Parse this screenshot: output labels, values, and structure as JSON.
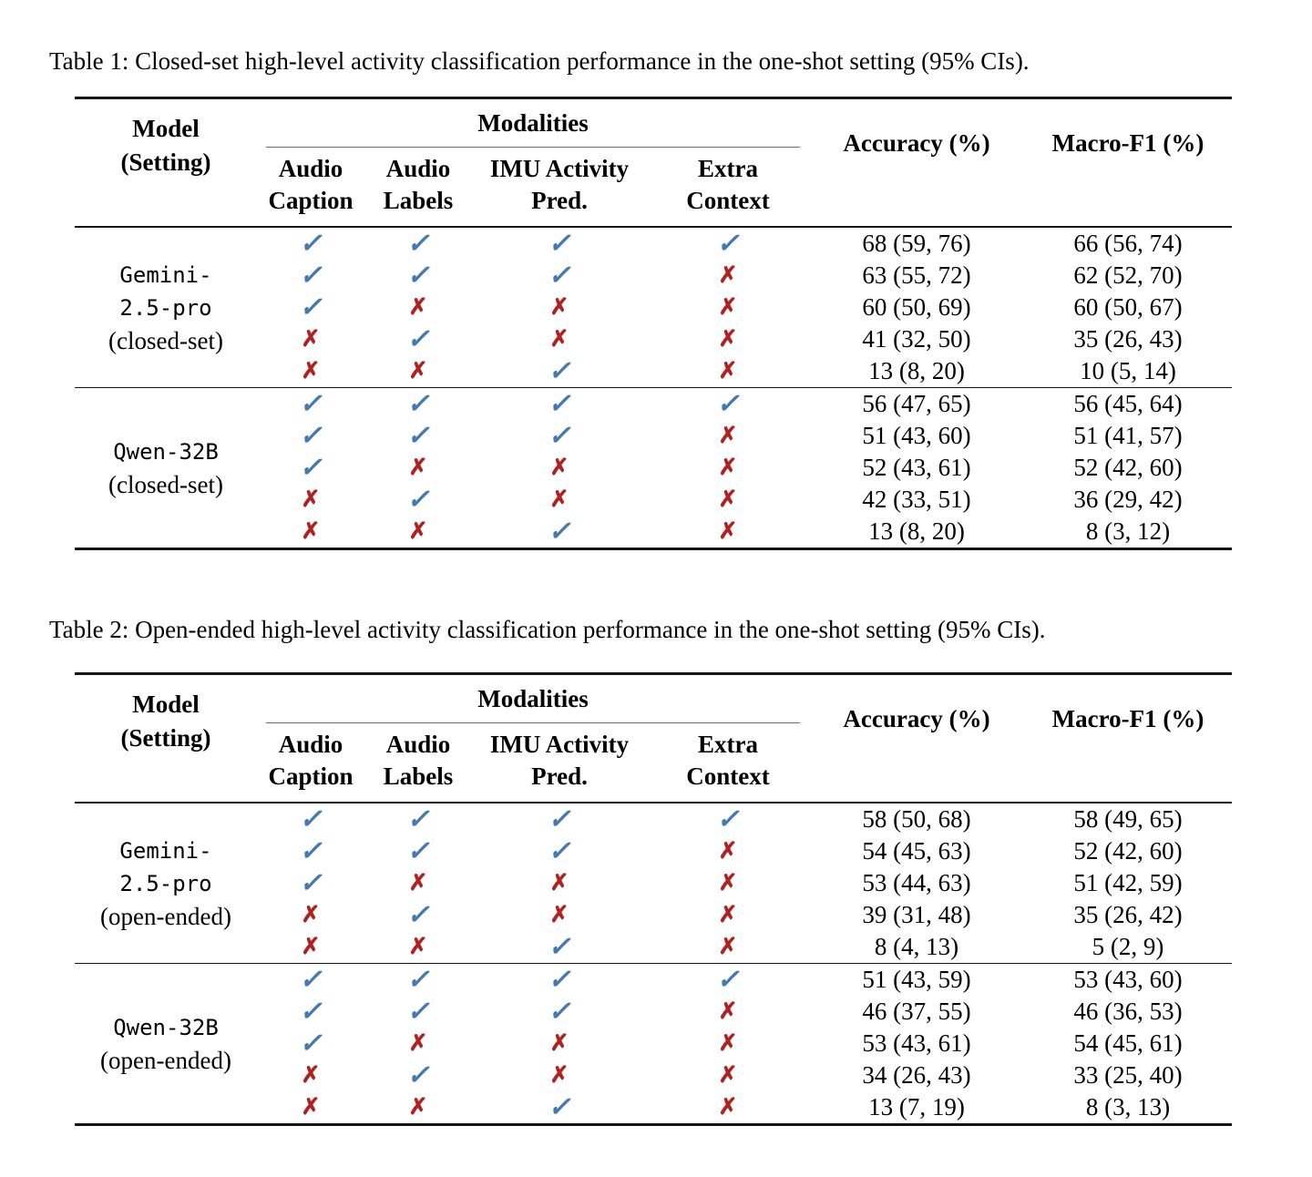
{
  "glyphs": {
    "check": "✓",
    "cross": "✗"
  },
  "colors": {
    "check": "#4579b2",
    "cross": "#b02220"
  },
  "tables": [
    {
      "caption": "Table 1: Closed-set high-level activity classification performance in the one-shot setting (95% CIs).",
      "header": {
        "model": "Model\n(Setting)",
        "modalities": "Modalities",
        "cols": [
          "Audio\nCaption",
          "Audio\nLabels",
          "IMU Activity\nPred.",
          "Extra\nContext"
        ],
        "accuracy": "Accuracy (%)",
        "macro_f1": "Macro-F1 (%)"
      },
      "sections": [
        {
          "model_name": "Gemini-\n2.5-pro",
          "setting": "(closed-set)",
          "rows": [
            {
              "marks": [
                "✓",
                "✓",
                "✓",
                "✓"
              ],
              "accuracy": "68 (59, 76)",
              "macro_f1": "66 (56, 74)"
            },
            {
              "marks": [
                "✓",
                "✓",
                "✓",
                "✗"
              ],
              "accuracy": "63 (55, 72)",
              "macro_f1": "62 (52, 70)"
            },
            {
              "marks": [
                "✓",
                "✗",
                "✗",
                "✗"
              ],
              "accuracy": "60 (50, 69)",
              "macro_f1": "60 (50, 67)"
            },
            {
              "marks": [
                "✗",
                "✓",
                "✗",
                "✗"
              ],
              "accuracy": "41 (32, 50)",
              "macro_f1": "35 (26, 43)"
            },
            {
              "marks": [
                "✗",
                "✗",
                "✓",
                "✗"
              ],
              "accuracy": "13 (8, 20)",
              "macro_f1": "10 (5, 14)"
            }
          ]
        },
        {
          "model_name": "Qwen-32B",
          "setting": "(closed-set)",
          "rows": [
            {
              "marks": [
                "✓",
                "✓",
                "✓",
                "✓"
              ],
              "accuracy": "56 (47, 65)",
              "macro_f1": "56 (45, 64)"
            },
            {
              "marks": [
                "✓",
                "✓",
                "✓",
                "✗"
              ],
              "accuracy": "51 (43, 60)",
              "macro_f1": "51 (41, 57)"
            },
            {
              "marks": [
                "✓",
                "✗",
                "✗",
                "✗"
              ],
              "accuracy": "52 (43, 61)",
              "macro_f1": "52 (42, 60)"
            },
            {
              "marks": [
                "✗",
                "✓",
                "✗",
                "✗"
              ],
              "accuracy": "42 (33, 51)",
              "macro_f1": "36 (29, 42)"
            },
            {
              "marks": [
                "✗",
                "✗",
                "✓",
                "✗"
              ],
              "accuracy": "13 (8, 20)",
              "macro_f1": "8 (3, 12)"
            }
          ]
        }
      ]
    },
    {
      "caption": "Table 2: Open-ended high-level activity classification performance in the one-shot setting (95% CIs).",
      "header": {
        "model": "Model\n(Setting)",
        "modalities": "Modalities",
        "cols": [
          "Audio\nCaption",
          "Audio\nLabels",
          "IMU Activity\nPred.",
          "Extra\nContext"
        ],
        "accuracy": "Accuracy (%)",
        "macro_f1": "Macro-F1 (%)"
      },
      "sections": [
        {
          "model_name": "Gemini-\n2.5-pro",
          "setting": "(open-ended)",
          "rows": [
            {
              "marks": [
                "✓",
                "✓",
                "✓",
                "✓"
              ],
              "accuracy": "58 (50, 68)",
              "macro_f1": "58 (49, 65)"
            },
            {
              "marks": [
                "✓",
                "✓",
                "✓",
                "✗"
              ],
              "accuracy": "54 (45, 63)",
              "macro_f1": "52 (42, 60)"
            },
            {
              "marks": [
                "✓",
                "✗",
                "✗",
                "✗"
              ],
              "accuracy": "53 (44, 63)",
              "macro_f1": "51 (42, 59)"
            },
            {
              "marks": [
                "✗",
                "✓",
                "✗",
                "✗"
              ],
              "accuracy": "39 (31, 48)",
              "macro_f1": "35 (26, 42)"
            },
            {
              "marks": [
                "✗",
                "✗",
                "✓",
                "✗"
              ],
              "accuracy": "8 (4, 13)",
              "macro_f1": "5 (2, 9)"
            }
          ]
        },
        {
          "model_name": "Qwen-32B",
          "setting": "(open-ended)",
          "rows": [
            {
              "marks": [
                "✓",
                "✓",
                "✓",
                "✓"
              ],
              "accuracy": "51 (43, 59)",
              "macro_f1": "53 (43, 60)"
            },
            {
              "marks": [
                "✓",
                "✓",
                "✓",
                "✗"
              ],
              "accuracy": "46 (37, 55)",
              "macro_f1": "46 (36, 53)"
            },
            {
              "marks": [
                "✓",
                "✗",
                "✗",
                "✗"
              ],
              "accuracy": "53 (43, 61)",
              "macro_f1": "54 (45, 61)"
            },
            {
              "marks": [
                "✗",
                "✓",
                "✗",
                "✗"
              ],
              "accuracy": "34 (26, 43)",
              "macro_f1": "33 (25, 40)"
            },
            {
              "marks": [
                "✗",
                "✗",
                "✓",
                "✗"
              ],
              "accuracy": "13 (7, 19)",
              "macro_f1": "8 (3, 13)"
            }
          ]
        }
      ]
    }
  ]
}
